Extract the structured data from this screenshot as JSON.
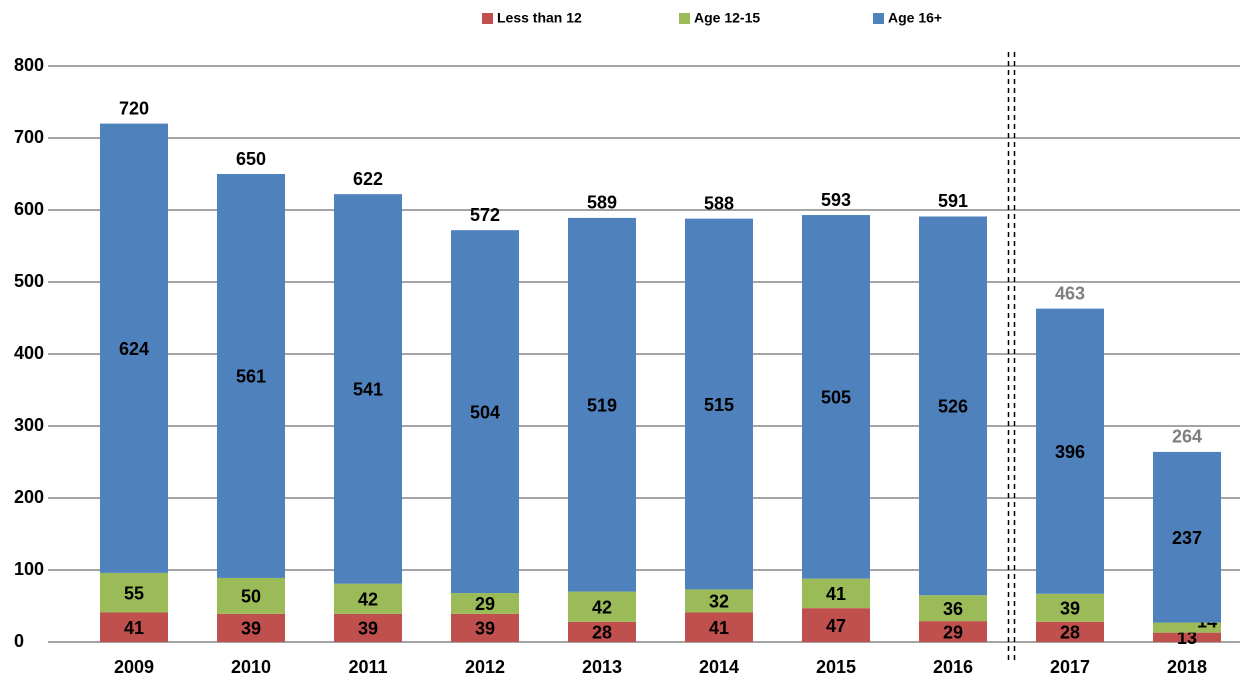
{
  "chart_data": {
    "type": "stacked_bar",
    "categories": [
      "2009",
      "2010",
      "2011",
      "2012",
      "2013",
      "2014",
      "2015",
      "2016",
      "2017",
      "2018"
    ],
    "series": [
      {
        "name": "Less than 12",
        "color": "#c0504d",
        "values": [
          41,
          39,
          39,
          39,
          28,
          41,
          47,
          29,
          28,
          13
        ]
      },
      {
        "name": "Age 12-15",
        "color": "#9bbb59",
        "values": [
          55,
          50,
          42,
          29,
          42,
          32,
          41,
          36,
          39,
          14
        ]
      },
      {
        "name": "Age 16+",
        "color": "#4f81bd",
        "values": [
          624,
          561,
          541,
          504,
          519,
          515,
          505,
          526,
          396,
          237
        ]
      }
    ],
    "totals": [
      720,
      650,
      622,
      572,
      589,
      588,
      593,
      591,
      463,
      264
    ],
    "totals_colors": [
      "#000000",
      "#000000",
      "#000000",
      "#000000",
      "#000000",
      "#000000",
      "#000000",
      "#000000",
      "#7f7f7f",
      "#7f7f7f"
    ],
    "ylim": [
      0,
      800
    ],
    "yticks": [
      0,
      100,
      200,
      300,
      400,
      500,
      600,
      700,
      800
    ],
    "grid": true,
    "legend": "top"
  }
}
